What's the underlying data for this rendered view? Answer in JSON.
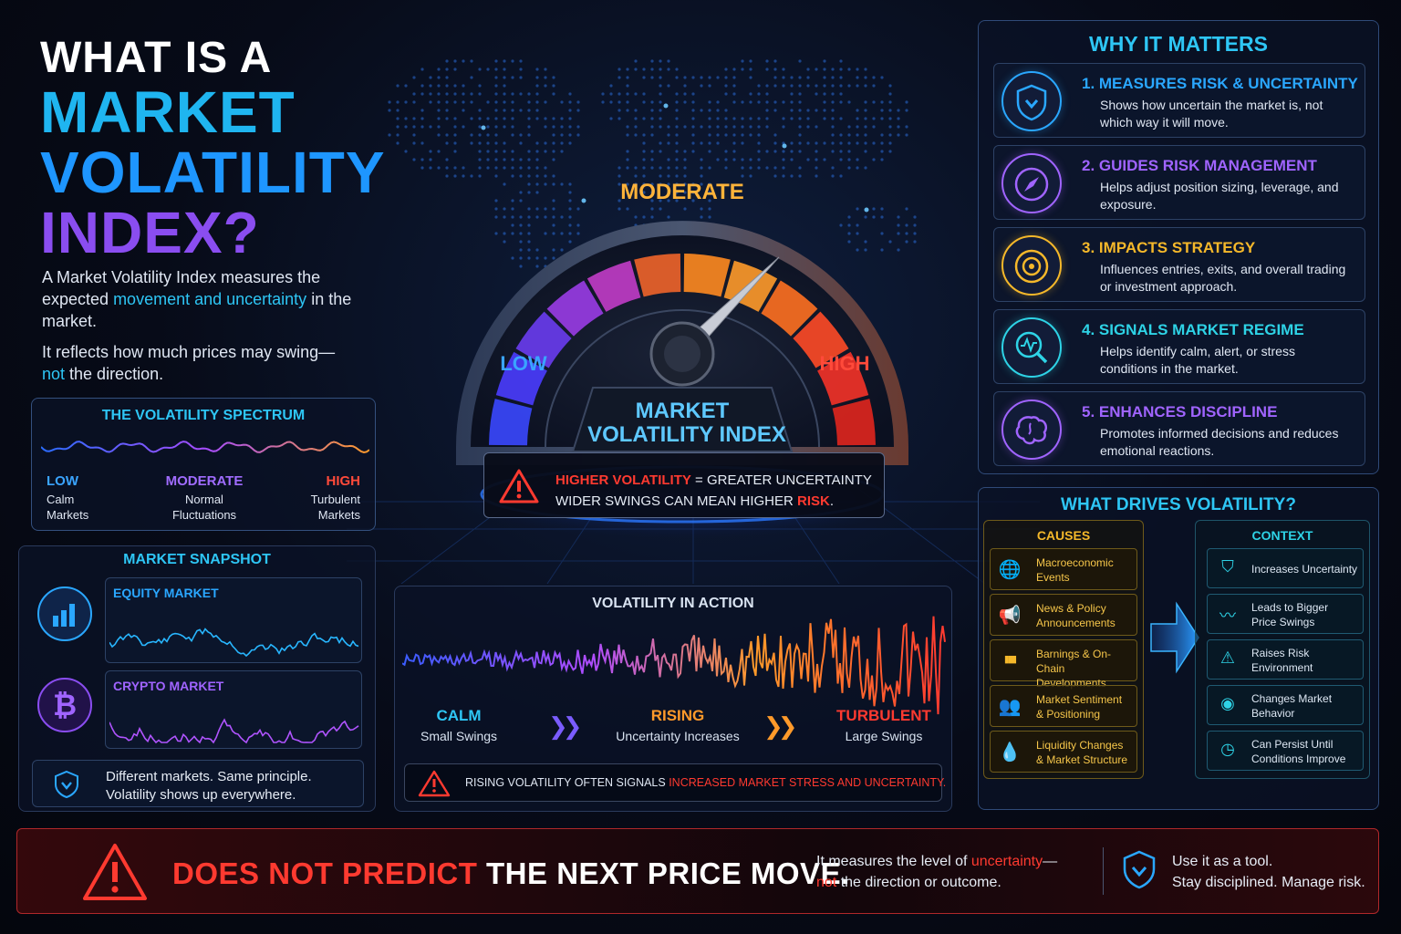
{
  "title": {
    "line1": "WHAT IS A",
    "line2": "MARKET",
    "line3": "VOLATILITY",
    "line4": "INDEX?"
  },
  "intro": {
    "p1_a": "A Market Volatility Index measures the expected ",
    "p1_hl": "movement and uncertainty",
    "p1_b": " in the market.",
    "p2_a": "It reflects how much prices may swing—",
    "p2_hl": "not",
    "p2_b": " the direction."
  },
  "spectrum": {
    "title": "THE VOLATILITY SPECTRUM",
    "low": {
      "label": "LOW",
      "line1": "Calm",
      "line2": "Markets"
    },
    "moderate": {
      "label": "MODERATE",
      "line1": "Normal",
      "line2": "Fluctuations"
    },
    "high": {
      "label": "HIGH",
      "line1": "Turbulent",
      "line2": "Markets"
    }
  },
  "snapshot": {
    "title": "MARKET SNAPSHOT",
    "equity": "EQUITY MARKET",
    "crypto": "CRYPTO MARKET",
    "note_line1": "Different markets. Same principle.",
    "note_line2": "Volatility shows up everywhere."
  },
  "gauge": {
    "moderate": "MODERATE",
    "low": "LOW",
    "high": "HIGH",
    "name_line1": "MARKET",
    "name_line2": "VOLATILITY INDEX",
    "level": 0.75,
    "warn_hl1": "HIGHER VOLATILITY",
    "warn_rest1": " = GREATER UNCERTAINTY",
    "warn_rest2": "WIDER SWINGS CAN MEAN HIGHER ",
    "warn_hl2": "RISK",
    "warn_end": "."
  },
  "action": {
    "title": "VOLATILITY IN ACTION",
    "calm": {
      "label": "CALM",
      "desc": "Small Swings"
    },
    "rising": {
      "label": "RISING",
      "desc": "Uncertainty Increases"
    },
    "turbulent": {
      "label": "TURBULENT",
      "desc": "Large Swings"
    },
    "note_a": "RISING VOLATILITY OFTEN SIGNALS ",
    "note_hl": "INCREASED MARKET STRESS AND UNCERTAINTY."
  },
  "why": {
    "title": "WHY IT MATTERS",
    "items": [
      {
        "title": "1. MEASURES RISK & UNCERTAINTY",
        "desc": "Shows how uncertain the market is, not which way it will move.",
        "icon": "shield-down-icon",
        "color": "#2aa7ff"
      },
      {
        "title": "2. GUIDES RISK MANAGEMENT",
        "desc": "Helps adjust position sizing, leverage, and exposure.",
        "icon": "compass-icon",
        "color": "#a064ff"
      },
      {
        "title": "3. IMPACTS STRATEGY",
        "desc": "Influences entries, exits, and overall trading or investment approach.",
        "icon": "target-icon",
        "color": "#f5b82a"
      },
      {
        "title": "4. SIGNALS MARKET REGIME",
        "desc": "Helps identify calm, alert, or stress conditions in the market.",
        "icon": "magnifier-pulse-icon",
        "color": "#2ed3e6"
      },
      {
        "title": "5. ENHANCES DISCIPLINE",
        "desc": "Promotes informed decisions and reduces emotional reactions.",
        "icon": "brain-icon",
        "color": "#a064ff"
      }
    ]
  },
  "drivers": {
    "title": "WHAT DRIVES VOLATILITY?",
    "causes_title": "CAUSES",
    "context_title": "CONTEXT",
    "causes": [
      {
        "l1": "Macroeconomic",
        "l2": "Events",
        "icon": "globe-icon"
      },
      {
        "l1": "News & Policy",
        "l2": "Announcements",
        "icon": "megaphone-icon"
      },
      {
        "l1": "Barnings & On-Chain",
        "l2": "Developments",
        "icon": "bar-chart-icon"
      },
      {
        "l1": "Market Sentiment",
        "l2": "& Positioning",
        "icon": "people-icon"
      },
      {
        "l1": "Liquidity Changes",
        "l2": "& Market Structure",
        "icon": "droplet-icon"
      }
    ],
    "context": [
      {
        "l1": "Increases Uncertainty",
        "l2": "",
        "icon": "shield-icon"
      },
      {
        "l1": "Leads to Bigger",
        "l2": "Price Swings",
        "icon": "pulse-icon"
      },
      {
        "l1": "Raises Risk",
        "l2": "Environment",
        "icon": "warning-icon"
      },
      {
        "l1": "Changes Market",
        "l2": "Behavior",
        "icon": "eye-icon"
      },
      {
        "l1": "Can Persist Until",
        "l2": "Conditions Improve",
        "icon": "clock-icon"
      }
    ]
  },
  "banner": {
    "hl": "DOES NOT PREDICT",
    "rest": " THE NEXT PRICE MOVE.",
    "mid_a": "It measures the level of ",
    "mid_hl1": "uncertainty",
    "mid_dash": "—",
    "mid_hl2": "not",
    "mid_b": " the direction or outcome.",
    "right_l1": "Use it as a tool.",
    "right_l2": "Stay disciplined. Manage risk."
  },
  "colors": {
    "cyan": "#2ec6f5",
    "purple": "#8a4df0",
    "orange": "#ff9a2a",
    "red": "#ff3a30",
    "gold": "#f5b82a"
  }
}
